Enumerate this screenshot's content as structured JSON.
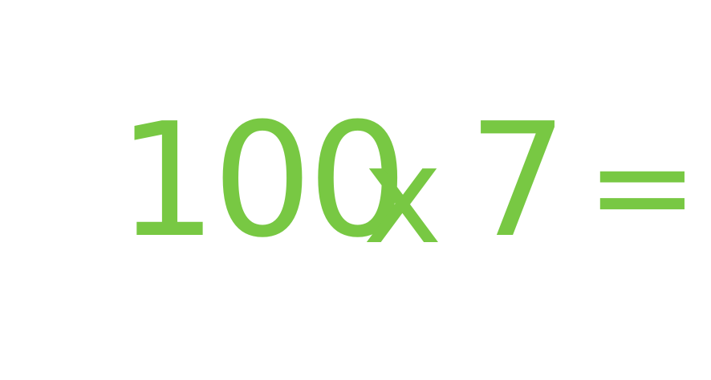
{
  "equation": {
    "operand_a": "100",
    "operator": "x",
    "operand_b": "7",
    "equals": "="
  },
  "colors": {
    "text": "#78c843",
    "background": "#ffffff"
  }
}
